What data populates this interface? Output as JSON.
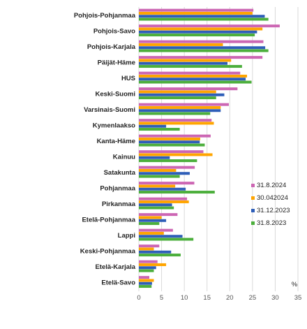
{
  "chart_data": {
    "type": "bar",
    "orientation": "horizontal",
    "title": "",
    "xlabel": "",
    "ylabel": "",
    "unit": "%",
    "xlim": [
      0,
      35
    ],
    "x_ticks": [
      0,
      5,
      10,
      15,
      20,
      25,
      30,
      35
    ],
    "grid": "vertical",
    "legend_position": "right",
    "categories": [
      "Pohjois-Pohjanmaa",
      "Pohjois-Savo",
      "Pohjois-Karjala",
      "Päijät-Häme",
      "HUS",
      "Keski-Suomi",
      "Varsinais-Suomi",
      "Kymenlaakso",
      "Kanta-Häme",
      "Kainuu",
      "Satakunta",
      "Pohjanmaa",
      "Pirkanmaa",
      "Etelä-Pohjanmaa",
      "Lappi",
      "Keski-Pohjanmaa",
      "Etelä-Karjala",
      "Etelä-Savo"
    ],
    "series": [
      {
        "name": "31.8.2024",
        "color": "#cc66b3",
        "values": [
          25.2,
          31.0,
          27.4,
          27.2,
          22.3,
          21.7,
          19.8,
          16.0,
          15.8,
          14.2,
          12.3,
          12.2,
          10.6,
          8.5,
          7.5,
          4.5,
          4.1,
          2.3
        ]
      },
      {
        "name": "30.042024",
        "color": "#ffa500",
        "values": [
          25.0,
          27.2,
          18.5,
          20.3,
          23.8,
          17.0,
          18.0,
          16.5,
          13.5,
          16.2,
          8.2,
          8.0,
          11.0,
          5.0,
          5.5,
          3.3,
          6.0,
          3.3
        ]
      },
      {
        "name": "31.12.2023",
        "color": "#2e5eb8",
        "values": [
          27.7,
          26.0,
          27.8,
          19.5,
          23.5,
          18.8,
          18.0,
          6.0,
          13.4,
          6.8,
          11.2,
          10.3,
          7.3,
          6.0,
          9.6,
          7.1,
          3.8,
          2.9
        ]
      },
      {
        "name": "31.8.2023",
        "color": "#4caf3c",
        "values": [
          28.5,
          25.5,
          28.5,
          22.7,
          24.8,
          17.0,
          15.7,
          9.0,
          14.5,
          12.8,
          9.0,
          16.7,
          7.7,
          4.5,
          12.0,
          9.2,
          3.3,
          2.8
        ]
      }
    ]
  }
}
